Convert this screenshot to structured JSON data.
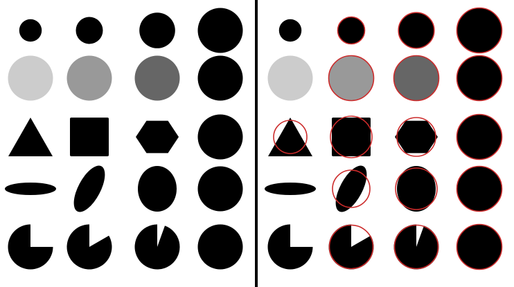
{
  "colors": {
    "background": "#ffffff",
    "shape_fill": "#000000",
    "divider": "#000000",
    "fit_circle_outline": "#cc2b2b",
    "gray_light": "#cccccc",
    "gray_mid": "#999999",
    "gray_dark": "#666666"
  },
  "panels": [
    {
      "name": "left-panel",
      "fit_circles_shown": false,
      "rows": [
        [
          {
            "shape": "circle",
            "fill": "shape_fill",
            "size": 0.25
          },
          {
            "shape": "circle",
            "fill": "shape_fill",
            "size": 0.36
          },
          {
            "shape": "circle",
            "fill": "shape_fill",
            "size": 0.63
          },
          {
            "shape": "circle",
            "fill": "shape_fill",
            "size": 1.0
          }
        ],
        [
          {
            "shape": "circle",
            "fill": "gray_light",
            "size": 1.0
          },
          {
            "shape": "circle",
            "fill": "gray_mid",
            "size": 1.0
          },
          {
            "shape": "circle",
            "fill": "gray_dark",
            "size": 1.0
          },
          {
            "shape": "circle",
            "fill": "shape_fill",
            "size": 1.0
          }
        ],
        [
          {
            "shape": "triangle",
            "fill": "shape_fill"
          },
          {
            "shape": "square",
            "fill": "shape_fill"
          },
          {
            "shape": "hexagon",
            "fill": "shape_fill"
          },
          {
            "shape": "circle",
            "fill": "shape_fill",
            "size": 1.0
          }
        ],
        [
          {
            "shape": "ellipse-flat",
            "fill": "shape_fill"
          },
          {
            "shape": "ellipse-tilted",
            "fill": "shape_fill"
          },
          {
            "shape": "ellipse-upright",
            "fill": "shape_fill"
          },
          {
            "shape": "circle",
            "fill": "shape_fill",
            "size": 1.0
          }
        ],
        [
          {
            "shape": "pie",
            "fill": "shape_fill",
            "missing_fraction": 0.25
          },
          {
            "shape": "pie",
            "fill": "shape_fill",
            "missing_fraction": 0.167
          },
          {
            "shape": "pie",
            "fill": "shape_fill",
            "missing_fraction": 0.055
          },
          {
            "shape": "circle",
            "fill": "shape_fill",
            "size": 1.0
          }
        ]
      ]
    },
    {
      "name": "right-panel",
      "fit_circles_shown": true,
      "rows": [
        [
          {
            "shape": "circle",
            "fill": "shape_fill",
            "size": 0.25,
            "fit": false
          },
          {
            "shape": "circle",
            "fill": "shape_fill",
            "size": 0.36,
            "fit": true
          },
          {
            "shape": "circle",
            "fill": "shape_fill",
            "size": 0.63,
            "fit": true
          },
          {
            "shape": "circle",
            "fill": "shape_fill",
            "size": 1.0,
            "fit": true
          }
        ],
        [
          {
            "shape": "circle",
            "fill": "gray_light",
            "size": 1.0,
            "fit": false
          },
          {
            "shape": "circle",
            "fill": "gray_mid",
            "size": 1.0,
            "fit": true
          },
          {
            "shape": "circle",
            "fill": "gray_dark",
            "size": 1.0,
            "fit": true
          },
          {
            "shape": "circle",
            "fill": "shape_fill",
            "size": 1.0,
            "fit": true
          }
        ],
        [
          {
            "shape": "triangle",
            "fill": "shape_fill",
            "fit": true
          },
          {
            "shape": "square",
            "fill": "shape_fill",
            "fit": true
          },
          {
            "shape": "hexagon",
            "fill": "shape_fill",
            "fit": true
          },
          {
            "shape": "circle",
            "fill": "shape_fill",
            "size": 1.0,
            "fit": true
          }
        ],
        [
          {
            "shape": "ellipse-flat",
            "fill": "shape_fill",
            "fit": false
          },
          {
            "shape": "ellipse-tilted",
            "fill": "shape_fill",
            "fit": true
          },
          {
            "shape": "ellipse-upright",
            "fill": "shape_fill",
            "fit": true
          },
          {
            "shape": "circle",
            "fill": "shape_fill",
            "size": 1.0,
            "fit": true
          }
        ],
        [
          {
            "shape": "pie",
            "fill": "shape_fill",
            "missing_fraction": 0.25,
            "fit": false
          },
          {
            "shape": "pie",
            "fill": "shape_fill",
            "missing_fraction": 0.167,
            "fit": true
          },
          {
            "shape": "pie",
            "fill": "shape_fill",
            "missing_fraction": 0.055,
            "fit": true
          },
          {
            "shape": "circle",
            "fill": "shape_fill",
            "size": 1.0,
            "fit": true
          }
        ]
      ]
    }
  ]
}
